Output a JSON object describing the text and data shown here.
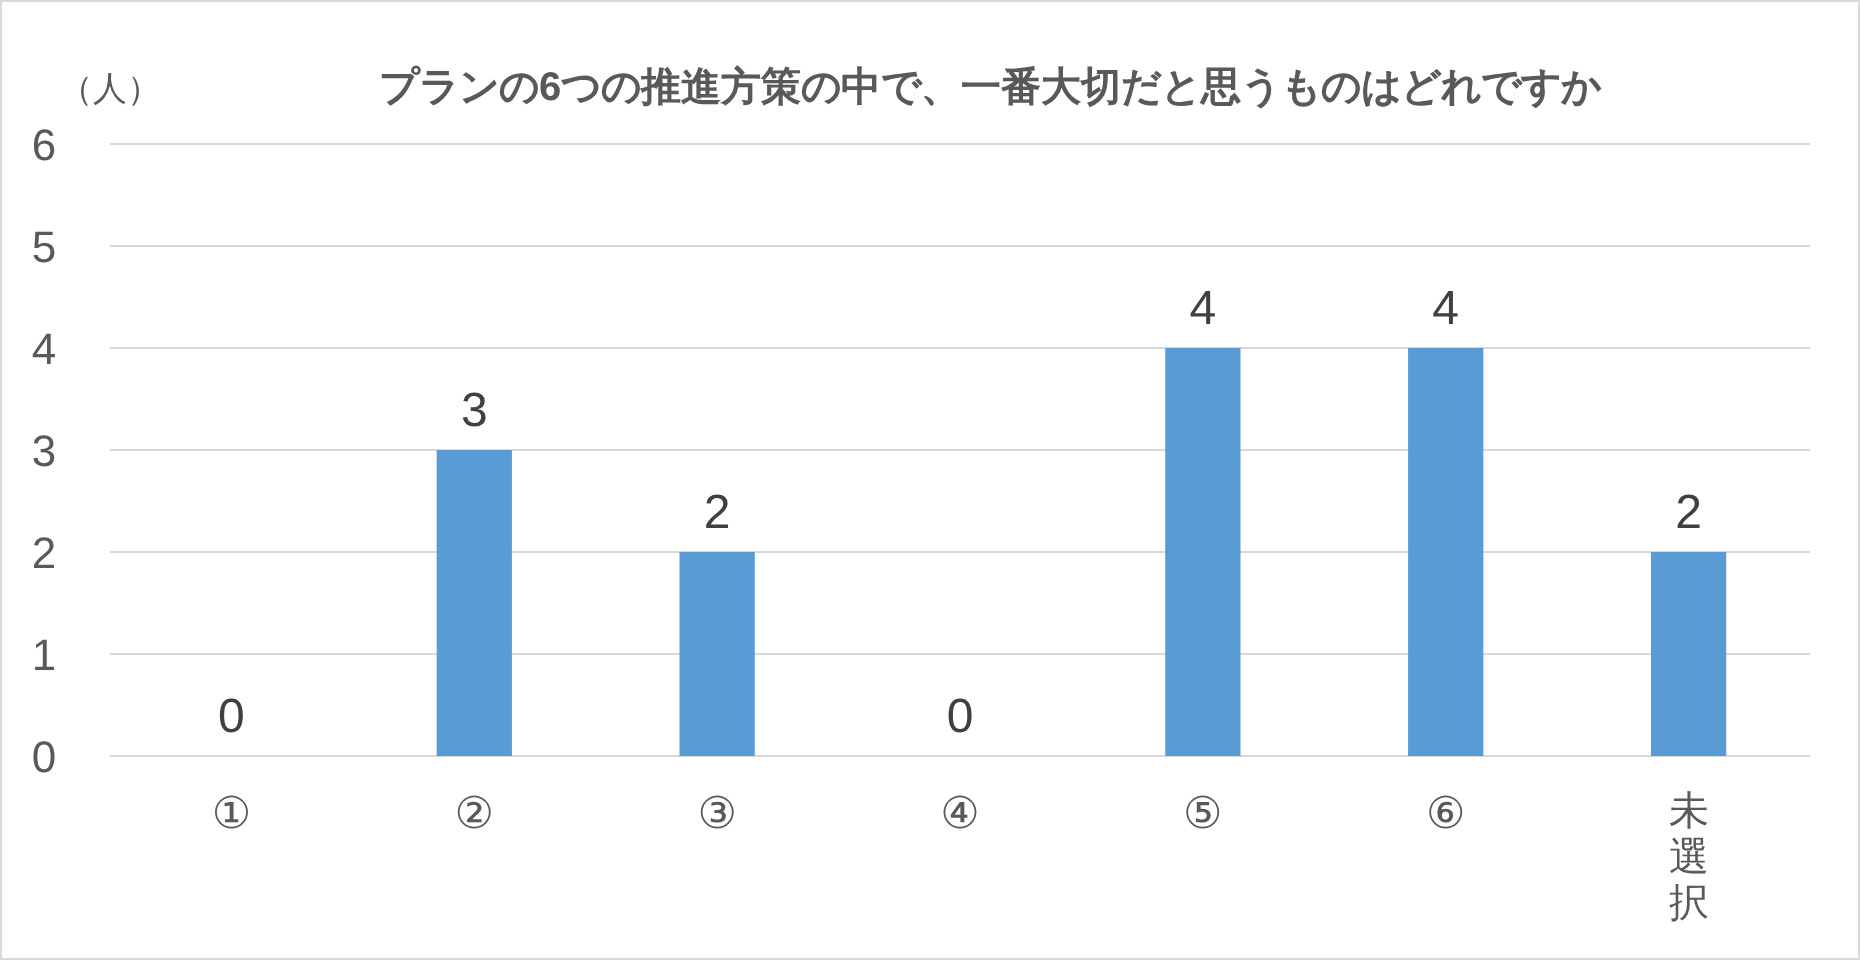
{
  "chart_data": {
    "type": "bar",
    "title": "プランの6つの推進方策の中で、一番大切だと思うものはどれですか",
    "ylabel": "（人）",
    "categories": [
      "①",
      "②",
      "③",
      "④",
      "⑤",
      "⑥",
      "未選択"
    ],
    "values": [
      0,
      3,
      2,
      0,
      4,
      4,
      2
    ],
    "color": "#5b9bd5",
    "ylim": [
      0,
      6
    ],
    "yticks": [
      0,
      1,
      2,
      3,
      4,
      5,
      6
    ],
    "grid": "y",
    "data_labels": true
  }
}
